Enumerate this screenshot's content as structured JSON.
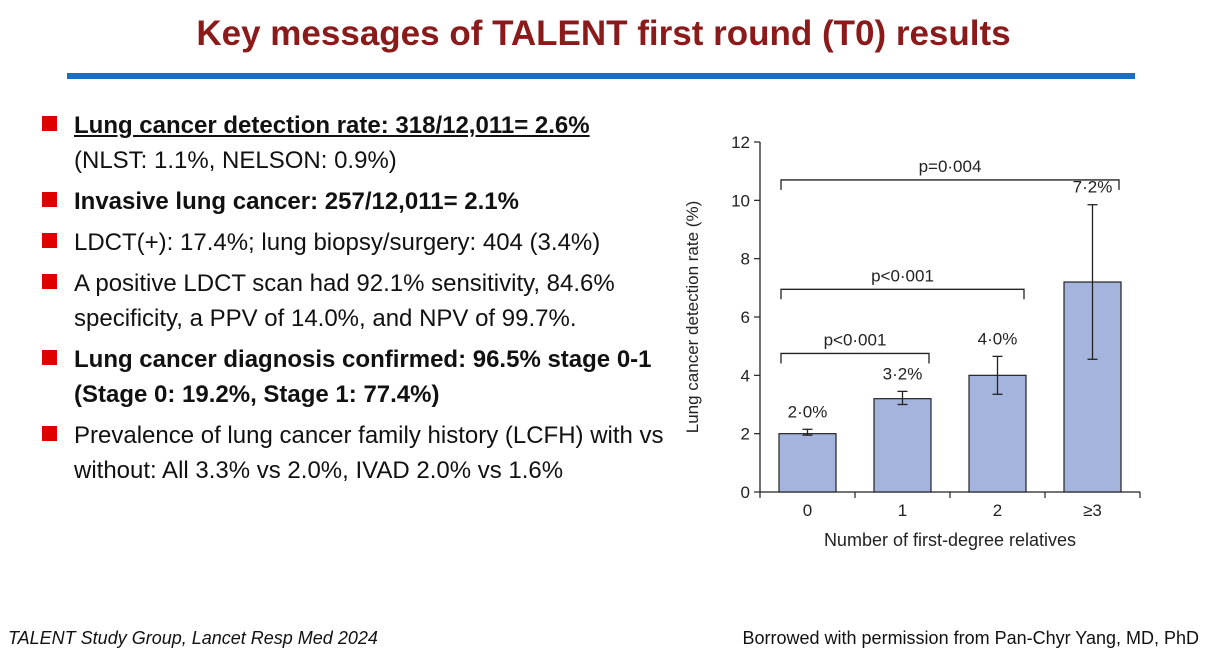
{
  "title": "Key messages of TALENT first round (T0) results",
  "bullets": [
    {
      "text": "Lung cancer detection rate: 318/12,011= 2.6%",
      "sub": "(NLST: 1.1%, NELSON: 0.9%)"
    },
    {
      "text": "Invasive lung cancer: 257/12,011= 2.1%"
    },
    {
      "text": "LDCT(+): 17.4%; lung biopsy/surgery: 404 (3.4%)"
    },
    {
      "text": "A positive LDCT scan had 92.1% sensitivity, 84.6% specificity, a PPV of 14.0%, and NPV of 99.7%."
    },
    {
      "text": "Lung cancer diagnosis confirmed: 96.5% stage 0-1 (Stage 0: 19.2%, Stage 1: 77.4%)"
    },
    {
      "text": "Prevalence of lung cancer family history (LCFH) with vs without: All 3.3% vs 2.0%, IVAD 2.0% vs 1.6%"
    }
  ],
  "chart_data": {
    "type": "bar",
    "categories": [
      "0",
      "1",
      "2",
      "≥3"
    ],
    "values": [
      2.0,
      3.2,
      4.0,
      7.2
    ],
    "value_labels": [
      "2·0%",
      "3·2%",
      "4·0%",
      "7·2%"
    ],
    "error_low": [
      1.95,
      3.0,
      3.35,
      4.55
    ],
    "error_high": [
      2.15,
      3.45,
      4.65,
      9.85
    ],
    "ylim": [
      0,
      12
    ],
    "yticks": [
      "0",
      "2",
      "4",
      "6",
      "8",
      "10",
      "12"
    ],
    "xlabel": "Number of first-degree relatives",
    "ylabel": "Lung cancer detection rate (%)",
    "brackets": [
      {
        "label": "p<0·001",
        "from": "0",
        "to": "1"
      },
      {
        "label": "p<0·001",
        "from": "0",
        "to": "2"
      },
      {
        "label": "p=0·004",
        "from": "0",
        "to": "≥3"
      }
    ],
    "bar_color": "#a5b4dc"
  },
  "footer": {
    "citation": "TALENT Study Group, Lancet Resp Med 2024",
    "credit": "Borrowed with permission from Pan-Chyr Yang, MD, PhD"
  }
}
